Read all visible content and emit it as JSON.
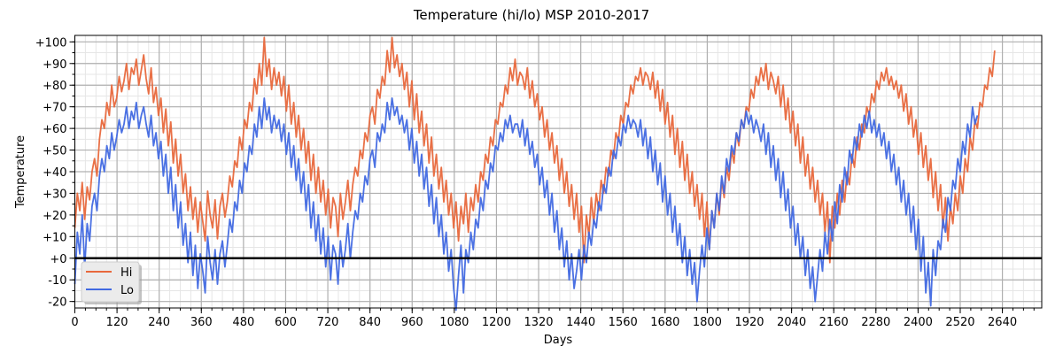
{
  "chart_data": {
    "type": "line",
    "title": "Temperature (hi/lo) MSP 2010-2017",
    "xlabel": "Days",
    "ylabel": "Temperature",
    "xlim": [
      0,
      2752
    ],
    "ylim": [
      -23,
      103
    ],
    "x_ticks": [
      0,
      120,
      240,
      360,
      480,
      600,
      720,
      840,
      960,
      1080,
      1200,
      1320,
      1440,
      1560,
      1680,
      1800,
      1920,
      2040,
      2160,
      2280,
      2400,
      2520,
      2640
    ],
    "x_tick_labels": [
      "0",
      "120",
      "240",
      "360",
      "480",
      "600",
      "720",
      "840",
      "960",
      "1080",
      "1200",
      "1320",
      "1440",
      "1560",
      "1680",
      "1800",
      "1920",
      "2040",
      "2160",
      "2280",
      "2400",
      "2520",
      "2640"
    ],
    "y_ticks": [
      -20,
      -10,
      0,
      10,
      20,
      30,
      40,
      50,
      60,
      70,
      80,
      90,
      100
    ],
    "y_tick_labels": [
      "-20",
      "-10",
      "+0",
      "+10",
      "+20",
      "+30",
      "+40",
      "+50",
      "+60",
      "+70",
      "+80",
      "+90",
      "+100"
    ],
    "x_minor_step": 30,
    "y_minor_step": 5,
    "grid": true,
    "reference_line": {
      "y": 0,
      "color": "#000000"
    },
    "legend": {
      "placement": "bottom-left",
      "entries": [
        "Hi",
        "Lo"
      ]
    },
    "sample_step_days": 7,
    "series": [
      {
        "name": "Hi",
        "color": "#E8683C",
        "x_start": 0,
        "values": [
          14,
          30,
          22,
          35,
          18,
          33,
          27,
          40,
          46,
          38,
          55,
          64,
          60,
          72,
          66,
          80,
          70,
          74,
          84,
          77,
          82,
          90,
          78,
          88,
          85,
          92,
          80,
          87,
          94,
          83,
          76,
          88,
          72,
          79,
          66,
          74,
          58,
          69,
          52,
          63,
          44,
          55,
          38,
          48,
          30,
          39,
          22,
          33,
          18,
          28,
          12,
          26,
          17,
          8,
          31,
          20,
          14,
          27,
          9,
          24,
          30,
          19,
          26,
          38,
          33,
          45,
          42,
          56,
          50,
          64,
          60,
          72,
          68,
          83,
          76,
          90,
          80,
          102,
          84,
          92,
          78,
          88,
          80,
          86,
          75,
          84,
          68,
          80,
          62,
          72,
          56,
          66,
          50,
          60,
          44,
          54,
          36,
          48,
          30,
          42,
          26,
          36,
          20,
          32,
          14,
          28,
          24,
          10,
          30,
          18,
          26,
          36,
          22,
          34,
          42,
          38,
          50,
          46,
          58,
          54,
          66,
          70,
          62,
          78,
          74,
          84,
          80,
          96,
          86,
          102,
          88,
          94,
          84,
          90,
          78,
          86,
          70,
          82,
          64,
          76,
          58,
          68,
          52,
          62,
          44,
          56,
          38,
          48,
          32,
          42,
          26,
          36,
          20,
          30,
          14,
          26,
          8,
          24,
          16,
          30,
          12,
          28,
          22,
          34,
          26,
          40,
          36,
          48,
          44,
          56,
          52,
          64,
          62,
          72,
          70,
          80,
          76,
          88,
          82,
          92,
          80,
          86,
          84,
          78,
          88,
          74,
          82,
          70,
          76,
          64,
          70,
          56,
          64,
          50,
          58,
          44,
          52,
          36,
          46,
          30,
          40,
          24,
          34,
          18,
          30,
          12,
          24,
          -2,
          20,
          10,
          28,
          16,
          30,
          22,
          36,
          30,
          42,
          38,
          50,
          46,
          58,
          54,
          66,
          62,
          72,
          70,
          80,
          76,
          84,
          82,
          88,
          80,
          86,
          84,
          78,
          86,
          74,
          82,
          68,
          78,
          62,
          72,
          56,
          66,
          48,
          60,
          42,
          54,
          36,
          48,
          30,
          40,
          24,
          34,
          18,
          30,
          10,
          26,
          4,
          22,
          14,
          30,
          20,
          36,
          28,
          42,
          36,
          50,
          44,
          58,
          52,
          64,
          60,
          70,
          68,
          78,
          74,
          84,
          80,
          88,
          82,
          90,
          78,
          86,
          82,
          76,
          84,
          70,
          80,
          64,
          74,
          58,
          68,
          52,
          62,
          44,
          56,
          38,
          48,
          32,
          42,
          26,
          36,
          20,
          30,
          12,
          26,
          -2,
          24,
          14,
          30,
          20,
          36,
          26,
          40,
          34,
          48,
          42,
          56,
          50,
          62,
          58,
          70,
          66,
          76,
          72,
          82,
          78,
          86,
          82,
          88,
          80,
          84,
          78,
          82,
          74,
          80,
          68,
          76,
          62,
          70,
          56,
          64,
          48,
          58,
          42,
          52,
          36,
          46,
          28,
          40,
          22,
          34,
          14,
          28,
          8,
          24,
          16,
          30,
          22,
          38,
          30,
          46,
          40,
          56,
          50,
          64,
          60,
          72,
          70,
          80,
          78,
          88,
          84,
          96
        ]
      },
      {
        "name": "Lo",
        "color": "#4169E1",
        "x_start": 0,
        "values": [
          -12,
          12,
          2,
          20,
          -4,
          16,
          8,
          24,
          30,
          22,
          38,
          46,
          40,
          52,
          46,
          58,
          50,
          56,
          64,
          58,
          62,
          70,
          60,
          68,
          64,
          72,
          60,
          66,
          70,
          62,
          56,
          66,
          52,
          58,
          46,
          54,
          38,
          48,
          30,
          42,
          22,
          34,
          14,
          26,
          6,
          16,
          -2,
          12,
          -8,
          6,
          -14,
          2,
          -6,
          -16,
          10,
          -2,
          -10,
          4,
          -12,
          2,
          8,
          -4,
          6,
          18,
          12,
          26,
          22,
          36,
          30,
          44,
          40,
          52,
          48,
          62,
          56,
          70,
          60,
          74,
          64,
          70,
          58,
          66,
          60,
          64,
          54,
          62,
          48,
          58,
          42,
          52,
          36,
          46,
          30,
          40,
          22,
          34,
          14,
          26,
          8,
          20,
          2,
          14,
          -4,
          10,
          -10,
          6,
          2,
          -12,
          8,
          -4,
          4,
          16,
          0,
          12,
          22,
          18,
          30,
          26,
          38,
          34,
          46,
          50,
          42,
          58,
          54,
          62,
          58,
          72,
          64,
          74,
          66,
          70,
          62,
          66,
          58,
          64,
          50,
          60,
          44,
          54,
          38,
          48,
          32,
          42,
          24,
          34,
          16,
          28,
          10,
          20,
          2,
          12,
          -6,
          4,
          -14,
          -24,
          -8,
          6,
          -16,
          4,
          -2,
          12,
          4,
          18,
          14,
          28,
          22,
          36,
          32,
          44,
          40,
          52,
          50,
          58,
          54,
          64,
          60,
          66,
          58,
          62,
          62,
          56,
          64,
          52,
          60,
          48,
          54,
          42,
          48,
          34,
          42,
          28,
          36,
          20,
          30,
          12,
          22,
          4,
          14,
          -4,
          8,
          -10,
          2,
          -14,
          -6,
          4,
          -10,
          6,
          -2,
          12,
          6,
          18,
          14,
          26,
          22,
          34,
          30,
          42,
          38,
          50,
          46,
          56,
          52,
          62,
          58,
          66,
          60,
          64,
          62,
          56,
          64,
          52,
          60,
          46,
          56,
          40,
          50,
          34,
          44,
          26,
          38,
          20,
          30,
          12,
          24,
          6,
          16,
          -2,
          10,
          -8,
          4,
          -12,
          -2,
          -20,
          -6,
          6,
          -4,
          14,
          4,
          22,
          14,
          30,
          22,
          38,
          30,
          46,
          40,
          52,
          48,
          58,
          54,
          64,
          60,
          68,
          62,
          66,
          58,
          64,
          60,
          54,
          62,
          48,
          58,
          42,
          52,
          36,
          46,
          28,
          40,
          22,
          32,
          14,
          24,
          6,
          16,
          0,
          10,
          -8,
          4,
          -14,
          -4,
          -20,
          -8,
          4,
          -6,
          12,
          2,
          18,
          8,
          26,
          16,
          34,
          26,
          42,
          34,
          50,
          44,
          56,
          50,
          62,
          56,
          66,
          60,
          68,
          58,
          64,
          56,
          62,
          52,
          58,
          46,
          54,
          40,
          48,
          34,
          42,
          26,
          36,
          20,
          30,
          12,
          24,
          4,
          18,
          -6,
          10,
          -16,
          -2,
          -22,
          4,
          -8,
          8,
          4,
          18,
          12,
          28,
          22,
          36,
          32,
          46,
          40,
          54,
          48,
          62,
          56,
          70,
          62,
          66
        ]
      }
    ]
  }
}
